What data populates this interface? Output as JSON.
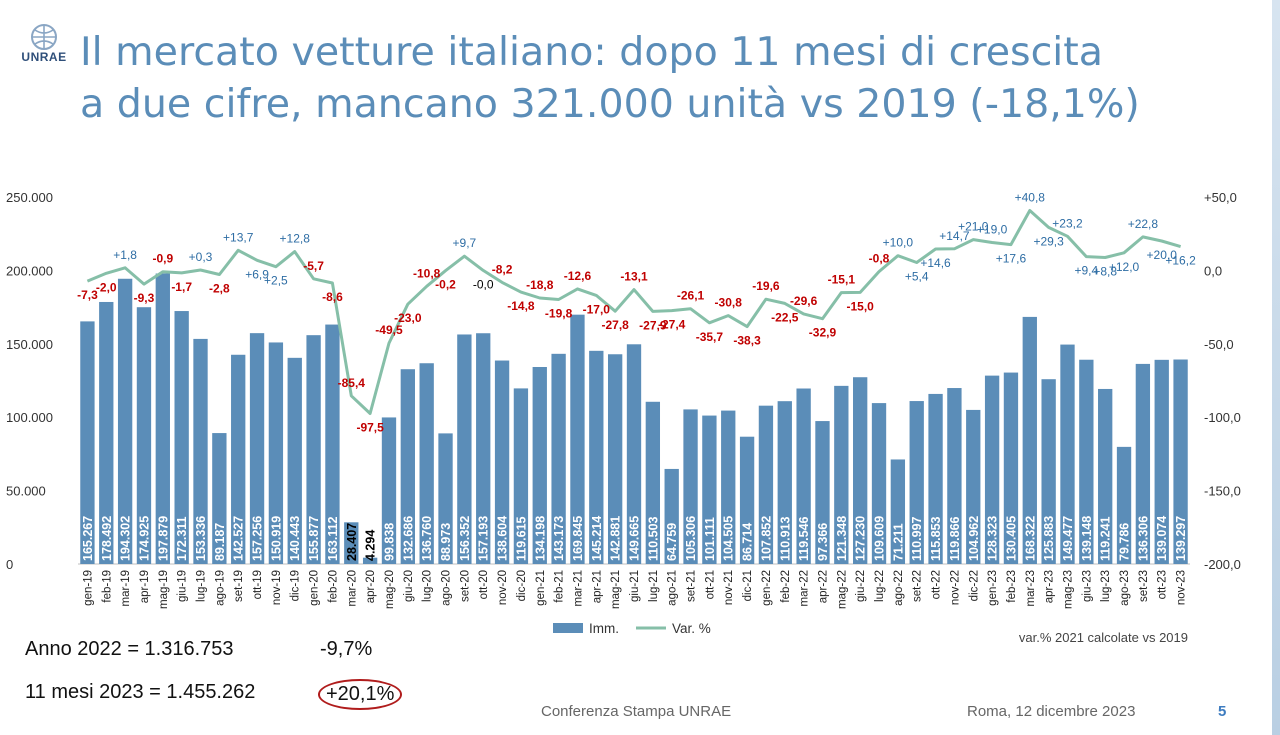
{
  "logo_text": "UNRAE",
  "title_line1": "Il mercato vetture italiano: dopo 11 mesi di crescita",
  "title_line2": "a due cifre, mancano 321.000 unità vs 2019 (-18,1%)",
  "chart_data": {
    "type": "bar",
    "categories": [
      "gen-19",
      "feb-19",
      "mar-19",
      "apr-19",
      "mag-19",
      "giu-19",
      "lug-19",
      "ago-19",
      "set-19",
      "ott-19",
      "nov-19",
      "dic-19",
      "gen-20",
      "feb-20",
      "mar-20",
      "apr-20",
      "mag-20",
      "giu-20",
      "lug-20",
      "ago-20",
      "set-20",
      "ott-20",
      "nov-20",
      "dic-20",
      "gen-21",
      "feb-21",
      "mar-21",
      "apr-21",
      "mag-21",
      "giu-21",
      "lug-21",
      "ago-21",
      "set-21",
      "ott-21",
      "nov-21",
      "dic-21",
      "gen-22",
      "feb-22",
      "mar-22",
      "apr-22",
      "mag-22",
      "giu-22",
      "lug-22",
      "ago-22",
      "set-22",
      "ott-22",
      "nov-22",
      "dic-22",
      "gen-23",
      "feb-23",
      "mar-23",
      "apr-23",
      "mag-23",
      "giu-23",
      "lug-23",
      "ago-23",
      "set-23",
      "ott-23",
      "nov-23"
    ],
    "series": [
      {
        "name": "Imm.",
        "type": "bar",
        "axis": "left",
        "values": [
          165267,
          178492,
          194302,
          174925,
          197879,
          172311,
          153336,
          89187,
          142527,
          157256,
          150919,
          140443,
          155877,
          163112,
          28407,
          4294,
          99838,
          132686,
          136760,
          88973,
          156352,
          157193,
          138604,
          119615,
          134198,
          143173,
          169845,
          145214,
          142881,
          149665,
          110503,
          64759,
          105306,
          101111,
          104505,
          86714,
          107852,
          110913,
          119546,
          97366,
          121348,
          127230,
          109609,
          71211,
          110997,
          115853,
          119866,
          104962,
          128323,
          130405,
          168322,
          125883,
          149477,
          139148,
          119241,
          79786,
          136306,
          139074,
          139297
        ],
        "labels": [
          "165.267",
          "178.492",
          "194.302",
          "174.925",
          "197.879",
          "172.311",
          "153.336",
          "89.187",
          "142.527",
          "157.256",
          "150.919",
          "140.443",
          "155.877",
          "163.112",
          "28.407",
          "4.294",
          "99.838",
          "132.686",
          "136.760",
          "88.973",
          "156.352",
          "157.193",
          "138.604",
          "119.615",
          "134.198",
          "143.173",
          "169.845",
          "145.214",
          "142.881",
          "149.665",
          "110.503",
          "64.759",
          "105.306",
          "101.111",
          "104.505",
          "86.714",
          "107.852",
          "110.913",
          "119.546",
          "97.366",
          "121.348",
          "127.230",
          "109.609",
          "71.211",
          "110.997",
          "115.853",
          "119.866",
          "104.962",
          "128.323",
          "130.405",
          "168.322",
          "125.883",
          "149.477",
          "139.148",
          "119.241",
          "79.786",
          "136.306",
          "139.074",
          "139.297"
        ]
      },
      {
        "name": "Var. %",
        "type": "line",
        "axis": "right",
        "values": [
          -7.3,
          -2.0,
          1.8,
          -9.3,
          -0.9,
          -1.7,
          0.3,
          -2.8,
          13.7,
          6.9,
          2.5,
          12.8,
          -5.7,
          -8.6,
          -85.4,
          -97.5,
          -49.5,
          -23.0,
          -10.8,
          -0.2,
          9.7,
          -0.0,
          -8.2,
          -14.8,
          -18.8,
          -19.8,
          -12.6,
          -17.0,
          -27.8,
          -13.1,
          -27.9,
          -27.4,
          -26.1,
          -35.7,
          -30.8,
          -38.3,
          -19.6,
          -22.5,
          -29.6,
          -32.9,
          -15.1,
          -15.0,
          -0.8,
          10.0,
          5.4,
          14.6,
          14.7,
          21.0,
          19.0,
          17.6,
          40.8,
          29.3,
          23.2,
          9.4,
          8.8,
          12.0,
          22.8,
          20.0,
          16.2
        ],
        "labels": [
          "-7,3",
          "-2,0",
          "+1,8",
          "-9,3",
          "-0,9",
          "-1,7",
          "+0,3",
          "-2,8",
          "+13,7",
          "+6,9",
          "+2,5",
          "+12,8",
          "-5,7",
          "-8,6",
          "-85,4",
          "-97,5",
          "-49,5",
          "-23,0",
          "-10,8",
          "-0,2",
          "+9,7",
          "-0,0",
          "-8,2",
          "-14,8",
          "-18,8",
          "-19,8",
          "-12,6",
          "-17,0",
          "-27,8",
          "-13,1",
          "-27,9",
          "-27,4",
          "-26,1",
          "-35,7",
          "-30,8",
          "-38,3",
          "-19,6",
          "-22,5",
          "-29,6",
          "-32,9",
          "-15,1",
          "-15,0",
          "-0,8",
          "+10,0",
          "+5,4",
          "+14,6",
          "+14,7",
          "+21,0",
          "+19,0",
          "+17,6",
          "+40,8",
          "+29,3",
          "+23,2",
          "+9,4",
          "+8,8",
          "+12,0",
          "+22,8",
          "+20,0",
          "+16,2"
        ]
      }
    ],
    "y_left": {
      "range": [
        0,
        250000
      ],
      "ticks": [
        0,
        50000,
        100000,
        150000,
        200000,
        250000
      ],
      "tick_labels": [
        "0",
        "50.000",
        "100.000",
        "150.000",
        "200.000",
        "250.000"
      ]
    },
    "y_right": {
      "range": [
        -200,
        50
      ],
      "ticks": [
        -200,
        -150,
        -100,
        -50,
        0,
        50
      ],
      "tick_labels": [
        "-200,0",
        "-150,0",
        "-100,0",
        "-50,0",
        "0,0",
        "+50,0"
      ]
    },
    "legend": {
      "position": "bottom",
      "entries": [
        "Imm.",
        "Var. %"
      ]
    },
    "note": "var.% 2021 calcolate vs 2019",
    "colors": {
      "bar": "#5b8db8",
      "line": "#86bfa8",
      "label_pos": "#2e6da4",
      "label_neg": "#c00000",
      "label_zero": "#000000"
    },
    "grid": false
  },
  "summary": {
    "row1_label": "Anno 2022 = 1.316.753",
    "row1_value": "-9,7%",
    "row2_label": "11 mesi 2023 = 1.455.262",
    "row2_value": "+20,1%"
  },
  "footer": {
    "conference": "Conferenza Stampa UNRAE",
    "date": "Roma, 12 dicembre 2023",
    "page": "5"
  }
}
